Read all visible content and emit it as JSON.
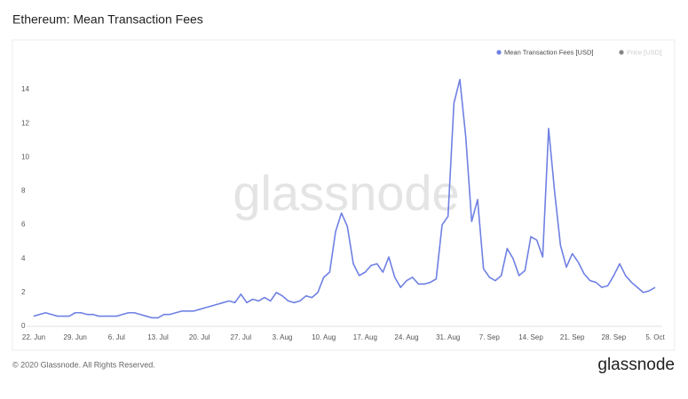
{
  "chart_data": {
    "type": "line",
    "title": "Ethereum: Mean Transaction Fees",
    "categories": [
      "22. Jun",
      null,
      null,
      null,
      null,
      null,
      null,
      "29. Jun",
      null,
      null,
      null,
      null,
      null,
      null,
      "6. Jul",
      null,
      null,
      null,
      null,
      null,
      null,
      "13. Jul",
      null,
      null,
      null,
      null,
      null,
      null,
      "20. Jul",
      null,
      null,
      null,
      null,
      null,
      null,
      "27. Jul",
      null,
      null,
      null,
      null,
      null,
      null,
      "3. Aug",
      null,
      null,
      null,
      null,
      null,
      null,
      "10. Aug",
      null,
      null,
      null,
      null,
      null,
      null,
      "17. Aug",
      null,
      null,
      null,
      null,
      null,
      null,
      "24. Aug",
      null,
      null,
      null,
      null,
      null,
      null,
      "31. Aug",
      null,
      null,
      null,
      null,
      null,
      null,
      "7. Sep",
      null,
      null,
      null,
      null,
      null,
      null,
      "14. Sep",
      null,
      null,
      null,
      null,
      null,
      null,
      "21. Sep",
      null,
      null,
      null,
      null,
      null,
      null,
      "28. Sep",
      null,
      null,
      null,
      null,
      null,
      null,
      "5. Oct"
    ],
    "series": [
      {
        "name": "Mean Transaction Fees [USD]",
        "color": "#6f80e3",
        "visible": true,
        "values": [
          0.6,
          0.7,
          0.8,
          0.7,
          0.6,
          0.6,
          0.6,
          0.8,
          0.8,
          0.7,
          0.7,
          0.6,
          0.6,
          0.6,
          0.6,
          0.7,
          0.8,
          0.8,
          0.7,
          0.6,
          0.5,
          0.5,
          0.7,
          0.7,
          0.8,
          0.9,
          0.9,
          0.9,
          1.0,
          1.1,
          1.2,
          1.3,
          1.4,
          1.5,
          1.4,
          1.9,
          1.4,
          1.6,
          1.5,
          1.7,
          1.5,
          2.0,
          1.8,
          1.5,
          1.4,
          1.5,
          1.8,
          1.7,
          2.0,
          2.9,
          3.2,
          5.6,
          6.7,
          5.9,
          3.7,
          3.0,
          3.2,
          3.6,
          3.7,
          3.2,
          4.1,
          2.9,
          2.3,
          2.7,
          2.9,
          2.5,
          2.5,
          2.6,
          2.8,
          6.0,
          6.5,
          13.2,
          14.6,
          11.2,
          6.2,
          7.5,
          3.4,
          2.9,
          2.7,
          3.0,
          4.6,
          4.0,
          3.0,
          3.3,
          5.3,
          5.1,
          4.1,
          11.7,
          8.0,
          4.8,
          3.5,
          4.3,
          3.8,
          3.1,
          2.7,
          2.6,
          2.3,
          2.4,
          3.0,
          3.7,
          3.0,
          2.6,
          2.3,
          2.0,
          2.1,
          2.3
        ]
      },
      {
        "name": "Price [USD]",
        "color": "#666666",
        "visible": false,
        "values": [
          null,
          null,
          null,
          null,
          null,
          null,
          null,
          null,
          null,
          null,
          null,
          null,
          null,
          null,
          null,
          null,
          null,
          null,
          null,
          null,
          null,
          null,
          null,
          null,
          null,
          null,
          null,
          null,
          null,
          null,
          null,
          null,
          null,
          null,
          null,
          null,
          null,
          null,
          null,
          null,
          null,
          null,
          null,
          null,
          null,
          null,
          null,
          null,
          null,
          null,
          null,
          null,
          null,
          null,
          null,
          null,
          null,
          null,
          null,
          null,
          null,
          null,
          null,
          null,
          null,
          null,
          null,
          null,
          null,
          null,
          null,
          null,
          null,
          null,
          null,
          null,
          null,
          null,
          null,
          null,
          null,
          null,
          null,
          null,
          null,
          null,
          null,
          null,
          null,
          null,
          null,
          null,
          null,
          null,
          null,
          null,
          null,
          null,
          null,
          null,
          null,
          null,
          null,
          null,
          null,
          null
        ]
      }
    ],
    "ylim": [
      0,
      16
    ],
    "yticks": [
      0,
      2,
      4,
      6,
      8,
      10,
      12,
      14
    ],
    "grid": false
  },
  "watermark": "glassnode",
  "footer": "© 2020 Glassnode. All Rights Reserved.",
  "logo": "glassnode"
}
